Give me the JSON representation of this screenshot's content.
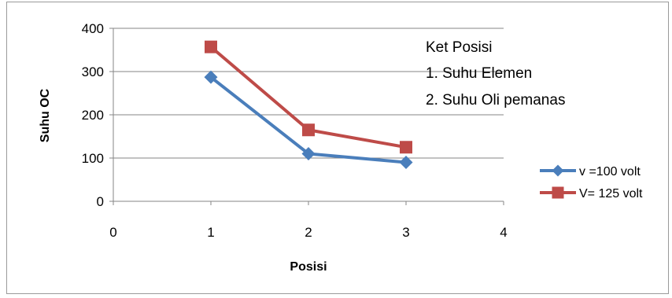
{
  "chart_data": {
    "type": "line",
    "title": "",
    "xlabel": "Posisi",
    "ylabel": "Suhu OC",
    "xlim": [
      0,
      4
    ],
    "ylim": [
      0,
      400
    ],
    "x_ticks": [
      "0",
      "1",
      "2",
      "3",
      "4"
    ],
    "y_ticks": [
      "0",
      "100",
      "200",
      "300",
      "400"
    ],
    "grid": "horizontal",
    "legend_position": "right",
    "x": [
      1,
      2,
      3
    ],
    "series": [
      {
        "name": "v =100 volt",
        "values": [
          287,
          110,
          90
        ],
        "color": "#4a7ebb",
        "marker": "diamond"
      },
      {
        "name": "V= 125 volt",
        "values": [
          357,
          165,
          125
        ],
        "color": "#be4b48",
        "marker": "square"
      }
    ],
    "annotations": [
      "Ket Posisi",
      "1. Suhu Elemen",
      "2. Suhu Oli pemanas"
    ]
  }
}
